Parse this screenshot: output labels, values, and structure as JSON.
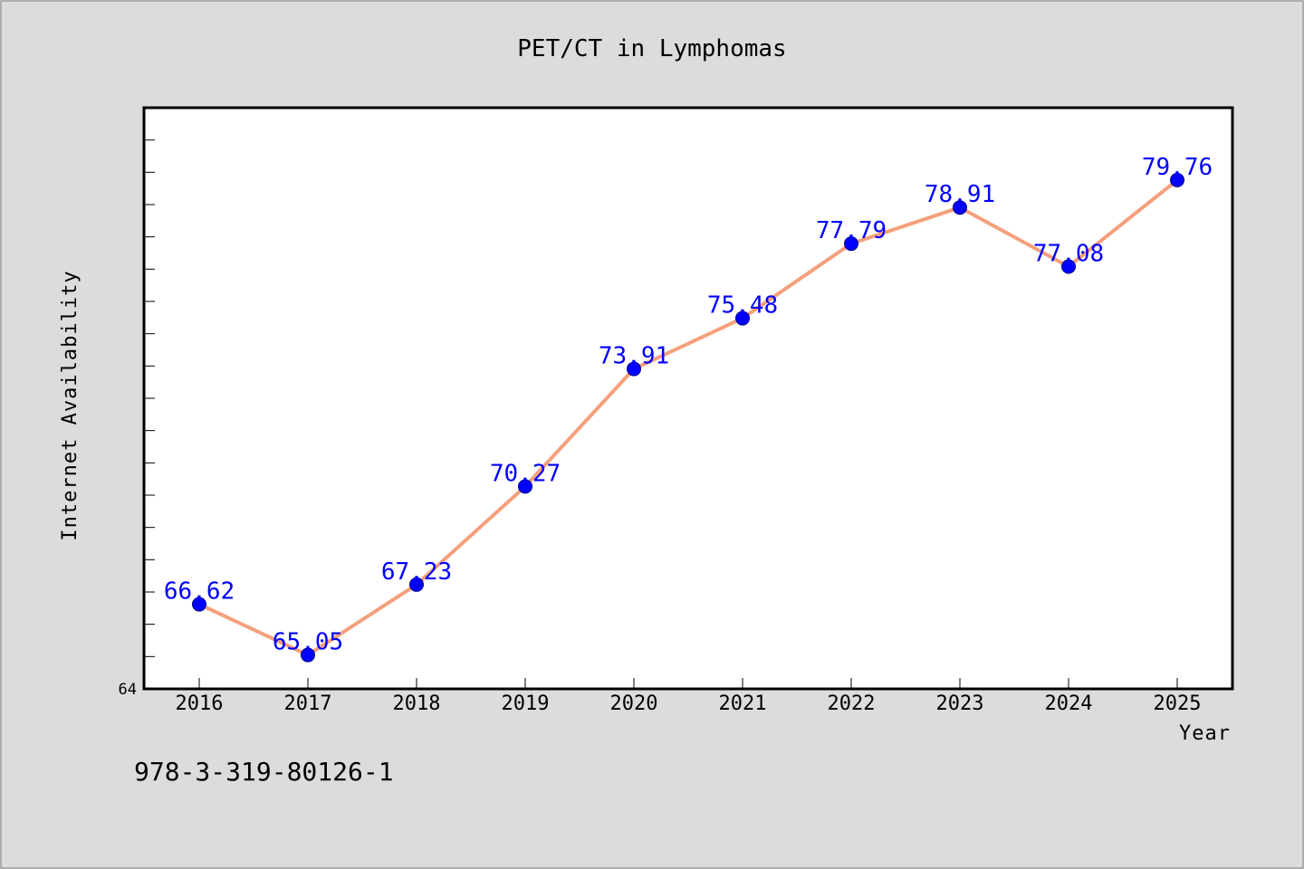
{
  "chart_data": {
    "type": "line",
    "title": "PET/CT in Lymphomas",
    "xlabel": "Year",
    "ylabel": "Internet Availability",
    "x": [
      "2016",
      "2017",
      "2018",
      "2019",
      "2020",
      "2021",
      "2022",
      "2023",
      "2024",
      "2025"
    ],
    "series": [
      {
        "values": [
          66.62,
          65.05,
          67.23,
          70.27,
          73.91,
          75.48,
          77.79,
          78.91,
          77.08,
          79.76
        ],
        "labels": [
          "66.62",
          "65.05",
          "67.23",
          "70.27",
          "73.91",
          "75.48",
          "77.79",
          "78.91",
          "77.08",
          "79.76"
        ],
        "line_color": "#f4a07c",
        "marker_color": "#0000ff"
      }
    ],
    "ylim": [
      64,
      82
    ],
    "y_min_label": "64",
    "grid": false
  },
  "footer": {
    "isbn": "978-3-319-80126-1"
  }
}
